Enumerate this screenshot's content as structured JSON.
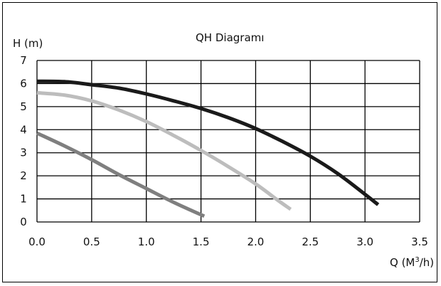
{
  "chart_data": {
    "type": "line",
    "title": "QH Diagramı",
    "ylabel": "H (m)",
    "xlabel_main": "Q (M",
    "xlabel_sup": "3",
    "xlabel_tail": "/h)",
    "xlim": [
      0.0,
      3.5
    ],
    "ylim": [
      0,
      7
    ],
    "x_ticks": [
      "0.0",
      "0.5",
      "1.0",
      "1.5",
      "2.0",
      "2.5",
      "3.0",
      "3.5"
    ],
    "y_ticks": [
      "0",
      "1",
      "2",
      "3",
      "4",
      "5",
      "6",
      "7"
    ],
    "grid": true,
    "series": [
      {
        "color": "#1a1a1a",
        "x": [
          0.0,
          0.25,
          0.5,
          0.75,
          1.0,
          1.25,
          1.5,
          1.75,
          2.0,
          2.25,
          2.5,
          2.75,
          3.0,
          3.12
        ],
        "y": [
          6.1,
          6.08,
          5.95,
          5.8,
          5.55,
          5.25,
          4.92,
          4.52,
          4.05,
          3.48,
          2.85,
          2.1,
          1.2,
          0.75
        ]
      },
      {
        "color": "#bdbdbd",
        "x": [
          0.0,
          0.25,
          0.5,
          0.75,
          1.0,
          1.25,
          1.5,
          1.75,
          2.0,
          2.2,
          2.32
        ],
        "y": [
          5.6,
          5.5,
          5.25,
          4.85,
          4.35,
          3.75,
          3.1,
          2.4,
          1.65,
          0.95,
          0.55
        ]
      },
      {
        "color": "#7f7f7f",
        "x": [
          0.0,
          0.25,
          0.5,
          0.75,
          1.0,
          1.25,
          1.53
        ],
        "y": [
          3.85,
          3.3,
          2.7,
          2.05,
          1.45,
          0.85,
          0.25
        ]
      }
    ]
  }
}
